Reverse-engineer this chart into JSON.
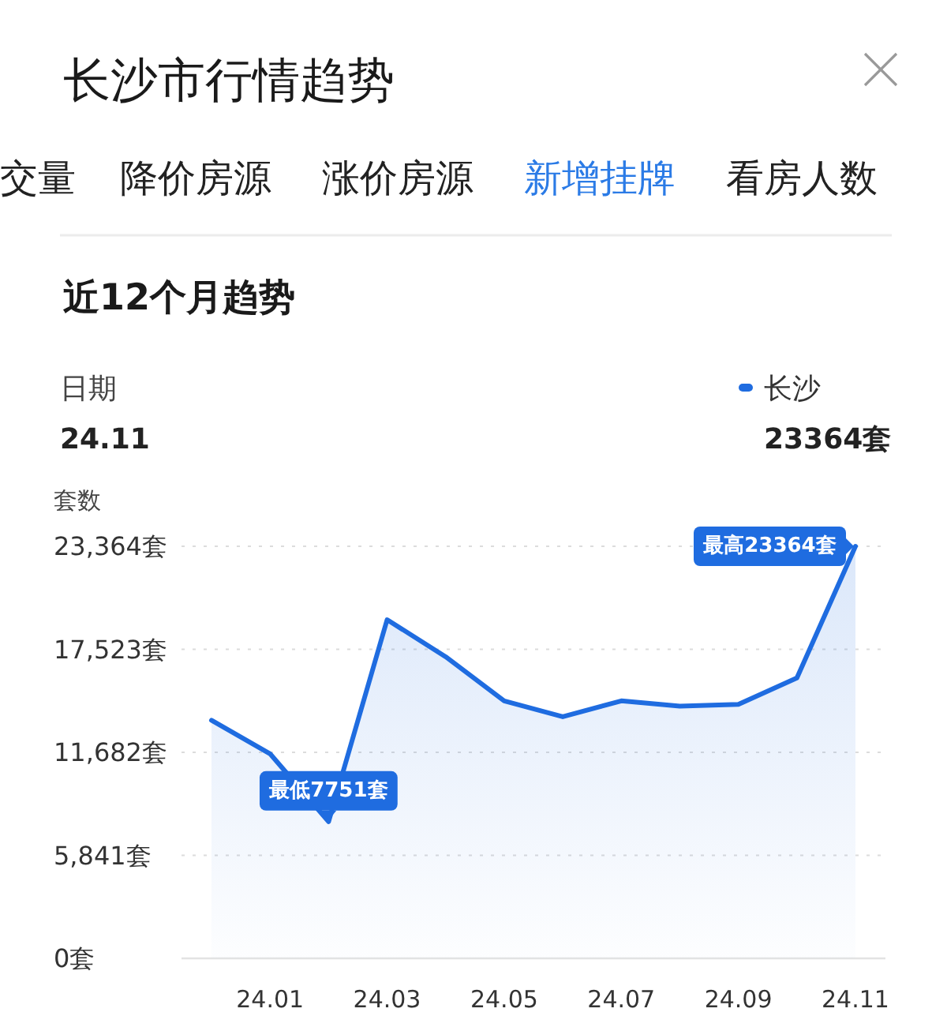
{
  "chart_data": {
    "type": "area",
    "title": "长沙市行情趋势",
    "subtitle": "近12个月趋势",
    "ylabel": "套数",
    "categories": [
      null,
      "24.01",
      null,
      "24.03",
      null,
      "24.05",
      null,
      "24.07",
      null,
      "24.09",
      null,
      "24.11"
    ],
    "series": [
      {
        "name": "长沙",
        "color": "#1f6ce0",
        "values": [
          13500,
          11600,
          7751,
          19200,
          17100,
          14600,
          13700,
          14600,
          14300,
          14400,
          15900,
          23364
        ]
      }
    ],
    "ylim": [
      0,
      23364
    ],
    "yticks": [
      {
        "value": 0,
        "label": "0套"
      },
      {
        "value": 5841,
        "label": "5,841套"
      },
      {
        "value": 11682,
        "label": "11,682套"
      },
      {
        "value": 17523,
        "label": "17,523套"
      },
      {
        "value": 23364,
        "label": "23,364套"
      }
    ],
    "grid": "y",
    "legend": "top right",
    "annotations": [
      "交量",
      "降价房源",
      "涨价房源",
      "新增挂牌",
      "看房人数",
      "日期",
      "24.11",
      "23364套",
      {
        "text": "最低7751套",
        "y": 7751
      },
      {
        "text": "最高23364套",
        "x": "24.11",
        "y": 23364
      }
    ]
  }
}
